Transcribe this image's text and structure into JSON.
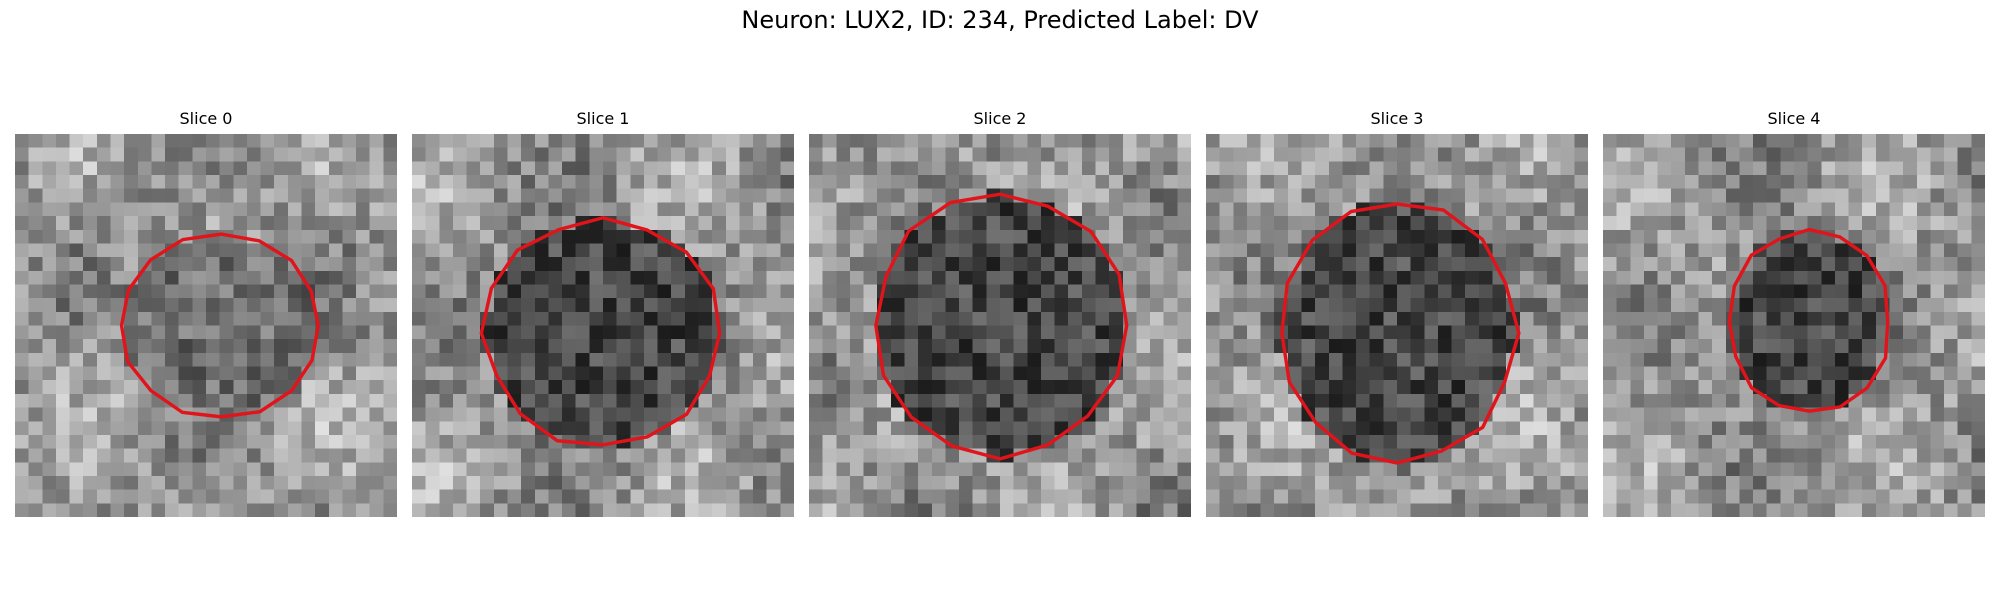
{
  "figure": {
    "title": "Neuron: LUX2, ID: 234, Predicted Label: DV"
  },
  "contour_color": "#e0141a",
  "colormap": "gray",
  "panels": [
    {
      "title": "Slice 0",
      "seed": 11,
      "center": [
        0.54,
        0.5
      ],
      "radius": [
        0.26,
        0.24
      ],
      "blob": "bright-surround"
    },
    {
      "title": "Slice 1",
      "seed": 23,
      "center": [
        0.5,
        0.52
      ],
      "radius": [
        0.31,
        0.3
      ],
      "blob": "dark-center"
    },
    {
      "title": "Slice 2",
      "seed": 37,
      "center": [
        0.5,
        0.5
      ],
      "radius": [
        0.33,
        0.34
      ],
      "blob": "dark-center"
    },
    {
      "title": "Slice 3",
      "seed": 41,
      "center": [
        0.5,
        0.52
      ],
      "radius": [
        0.31,
        0.34
      ],
      "blob": "dark-center"
    },
    {
      "title": "Slice 4",
      "seed": 53,
      "center": [
        0.54,
        0.49
      ],
      "radius": [
        0.21,
        0.24
      ],
      "blob": "dark-center"
    }
  ]
}
